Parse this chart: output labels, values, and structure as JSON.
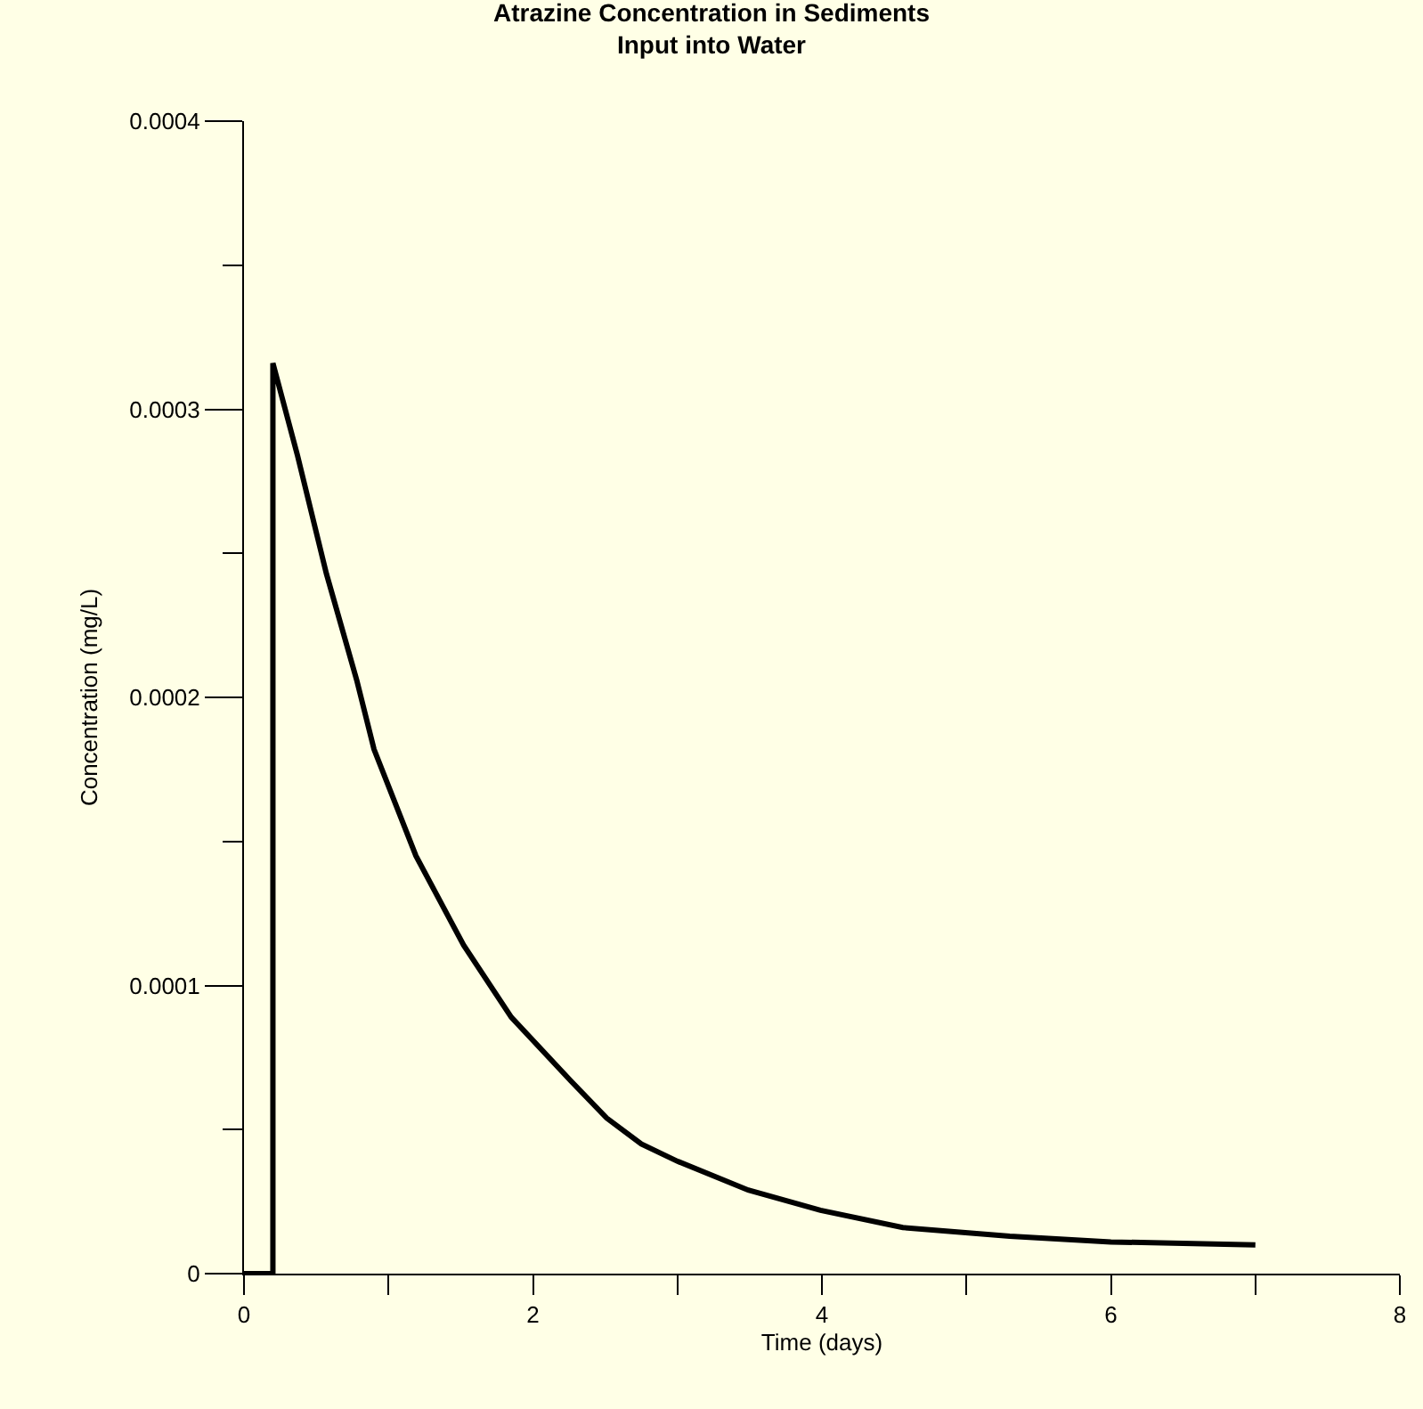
{
  "chart_data": {
    "type": "line",
    "title": "Atrazine Concentration in Sediments\nInput into Water",
    "xlabel": "Time (days)",
    "ylabel": "Concentration (mg/L)",
    "series": [
      {
        "color": "#000000",
        "x": [
          0,
          0.2,
          0.2,
          0.37,
          0.57,
          0.78,
          0.9,
          1.19,
          1.52,
          1.85,
          2.26,
          2.51,
          2.75,
          3.0,
          3.49,
          3.99,
          4.56,
          5.3,
          6.0,
          7.0
        ],
        "values": [
          0,
          0,
          0.000316,
          0.000284,
          0.000243,
          0.000206,
          0.000182,
          0.000145,
          0.000114,
          8.9e-05,
          6.7e-05,
          5.4e-05,
          4.5e-05,
          3.9e-05,
          2.9e-05,
          2.2e-05,
          1.6e-05,
          1.3e-05,
          1.1e-05,
          1e-05
        ]
      }
    ],
    "xlim": [
      0,
      8
    ],
    "ylim": [
      0,
      0.0004
    ],
    "xticks": [
      0,
      {
        "value": 1,
        "label": null
      },
      2,
      {
        "value": 3,
        "label": null
      },
      4,
      {
        "value": 5,
        "label": null
      },
      6,
      {
        "value": 7,
        "label": null
      },
      8
    ],
    "yticks": [
      0,
      {
        "value": 5e-05,
        "label": null
      },
      0.0001,
      {
        "value": 0.00015,
        "label": null
      },
      0.0002,
      {
        "value": 0.00025,
        "label": null
      },
      0.0003,
      {
        "value": 0.00035,
        "label": null
      },
      0.0004
    ],
    "grid": false,
    "marker": "none",
    "line_style": "solid"
  }
}
